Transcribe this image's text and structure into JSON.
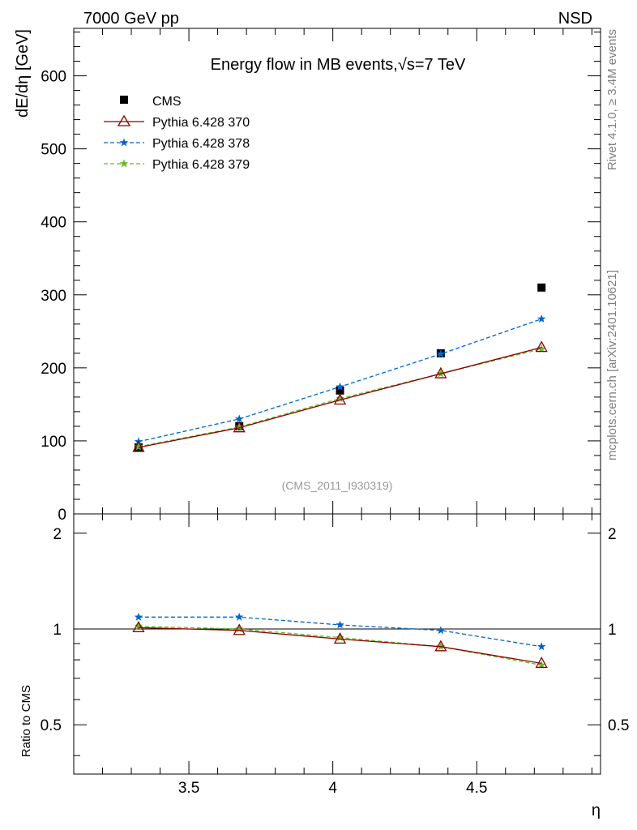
{
  "header": {
    "left_label": "7000 GeV pp",
    "right_label": "NSD"
  },
  "side_labels": {
    "rivet": "Rivet 4.1.0, ≥ 3.4M events",
    "mcplots": "mcplots.cern.ch [arXiv:2401.10621]"
  },
  "colors": {
    "cms": "#000000",
    "pythia370": "#8b0000",
    "pythia378": "#0066cc",
    "pythia379": "#66bb22",
    "side_text": "#7f7f7f",
    "analysis_text": "#999999"
  },
  "chart_data": [
    {
      "type": "line",
      "title": "Energy flow in MB events,√s=7 TeV",
      "title_prefix": "Energy flow in MB events,",
      "title_sqrt": "√",
      "title_suffix": "s=7 TeV",
      "ylabel": "dE/dη [GeV]",
      "analysis_label": "(CMS_2011_I930319)",
      "xlim": [
        3.1,
        4.93
      ],
      "ylim": [
        0,
        665
      ],
      "yticks": [
        0,
        100,
        200,
        300,
        400,
        500,
        600
      ],
      "ytick_labels": [
        "0",
        "100",
        "200",
        "300",
        "400",
        "500",
        "600"
      ],
      "x": [
        3.325,
        3.675,
        4.025,
        4.375,
        4.725
      ],
      "series": [
        {
          "name": "CMS",
          "marker": "square",
          "values": [
            91,
            120,
            169,
            220,
            310
          ]
        },
        {
          "name": "Pythia 6.428 370",
          "marker": "triangle",
          "line": "solid",
          "values": [
            91,
            118,
            156,
            192,
            228
          ]
        },
        {
          "name": "Pythia 6.428 378",
          "marker": "star",
          "line": "dashed",
          "values": [
            99,
            130,
            174,
            219,
            267
          ]
        },
        {
          "name": "Pythia 6.428 379",
          "marker": "star",
          "line": "dashed",
          "values": [
            92,
            119,
            158,
            192,
            226
          ]
        }
      ]
    },
    {
      "type": "line",
      "ylabel": "Ratio to CMS",
      "xlabel": "η",
      "xlim": [
        3.1,
        4.93
      ],
      "ylim": [
        0.35,
        2.3
      ],
      "yticks": [
        0.5,
        1,
        2
      ],
      "ytick_labels": [
        "0.5",
        "1",
        "2"
      ],
      "xticks": [
        3.5,
        4,
        4.5
      ],
      "xtick_labels": [
        "3.5",
        "4",
        "4.5"
      ],
      "reference_line": 1,
      "x": [
        3.325,
        3.675,
        4.025,
        4.375,
        4.725
      ],
      "series": [
        {
          "name": "Pythia 6.428 370",
          "marker": "triangle",
          "line": "solid",
          "values": [
            1.01,
            0.99,
            0.93,
            0.88,
            0.78
          ]
        },
        {
          "name": "Pythia 6.428 378",
          "marker": "star",
          "line": "dashed",
          "values": [
            1.09,
            1.09,
            1.03,
            0.99,
            0.88
          ]
        },
        {
          "name": "Pythia 6.428 379",
          "marker": "star",
          "line": "dashed",
          "values": [
            1.02,
            1.0,
            0.94,
            0.88,
            0.77
          ]
        }
      ]
    }
  ]
}
